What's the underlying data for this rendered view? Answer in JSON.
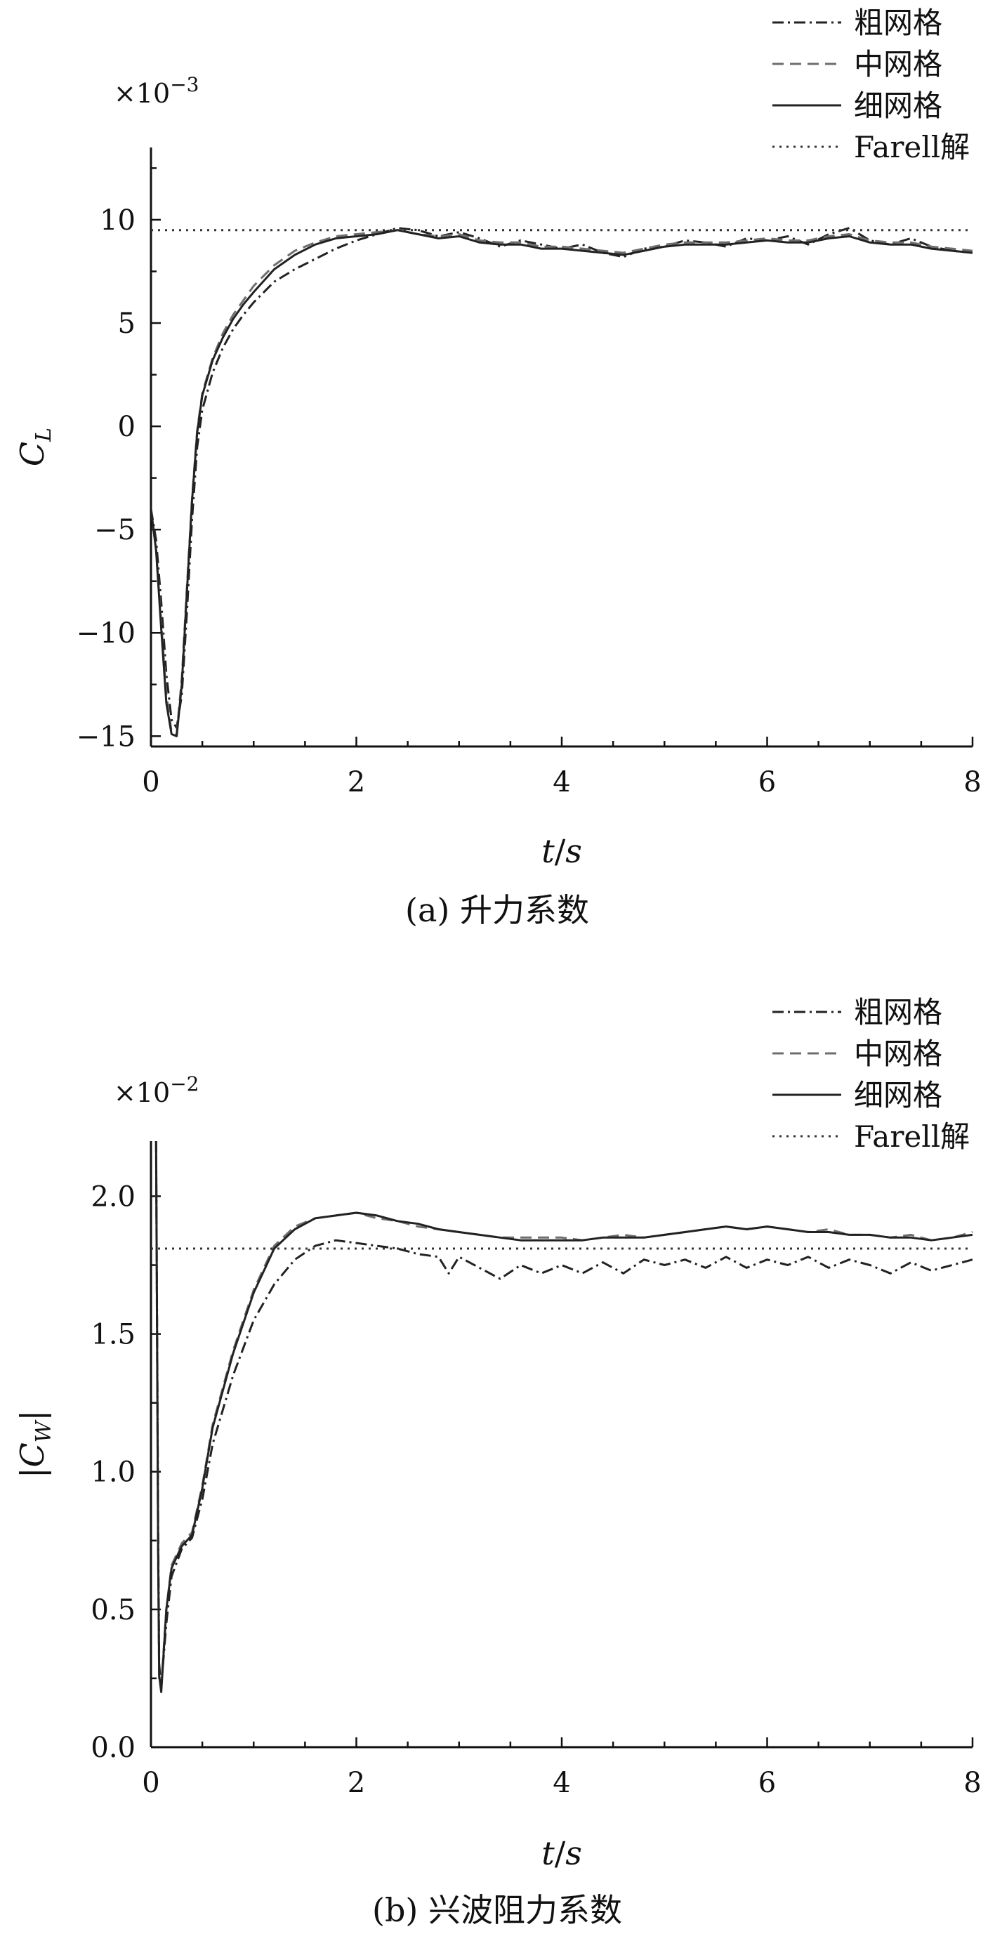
{
  "chart_data": [
    {
      "type": "line",
      "panel_label": "(a) 升力系数",
      "ylabel_main": "C",
      "ylabel_sub": "L",
      "xlabel_italic": "t",
      "xlabel_sep": "/",
      "xlabel_italic2": "s",
      "multiplier_base": "×10",
      "multiplier_exp": "−3",
      "xlim": [
        0,
        8
      ],
      "ylim": [
        -15.5,
        13.5
      ],
      "x_ticks": [
        0,
        2,
        4,
        6,
        8
      ],
      "x_tick_labels": [
        "0",
        "2",
        "4",
        "6",
        "8"
      ],
      "y_ticks": [
        -15,
        -10,
        -5,
        0,
        5,
        10
      ],
      "y_tick_labels": [
        "−15",
        "−10",
        "−5",
        "0",
        "5",
        "10"
      ],
      "grid": false,
      "legend_position": "top-right",
      "series": [
        {
          "name": "粗网格",
          "style": "dashdot",
          "x": [
            0,
            0.05,
            0.1,
            0.15,
            0.2,
            0.25,
            0.3,
            0.35,
            0.4,
            0.45,
            0.5,
            0.6,
            0.7,
            0.8,
            0.9,
            1.0,
            1.2,
            1.4,
            1.6,
            1.8,
            2.0,
            2.2,
            2.4,
            2.6,
            2.8,
            3.0,
            3.2,
            3.4,
            3.6,
            3.8,
            4.0,
            4.2,
            4.4,
            4.6,
            4.8,
            5.0,
            5.2,
            5.4,
            5.6,
            5.8,
            6.0,
            6.2,
            6.4,
            6.6,
            6.8,
            7.0,
            7.2,
            7.4,
            7.6,
            7.8,
            8.0
          ],
          "y": [
            -4.0,
            -5.5,
            -8.5,
            -12.0,
            -14.2,
            -14.6,
            -13.0,
            -9.0,
            -4.5,
            -1.0,
            0.8,
            2.6,
            3.8,
            4.7,
            5.4,
            6.0,
            7.0,
            7.6,
            8.1,
            8.6,
            9.0,
            9.3,
            9.6,
            9.5,
            9.2,
            9.4,
            9.1,
            8.7,
            9.0,
            8.8,
            8.6,
            8.8,
            8.4,
            8.2,
            8.6,
            8.7,
            9.0,
            8.9,
            8.7,
            9.1,
            9.0,
            9.2,
            8.8,
            9.3,
            9.6,
            9.0,
            8.8,
            9.1,
            8.7,
            8.5,
            8.4
          ]
        },
        {
          "name": "中网格",
          "style": "dashed",
          "x": [
            0,
            0.05,
            0.1,
            0.15,
            0.2,
            0.25,
            0.3,
            0.35,
            0.4,
            0.45,
            0.5,
            0.6,
            0.7,
            0.8,
            0.9,
            1.0,
            1.2,
            1.4,
            1.6,
            1.8,
            2.0,
            2.2,
            2.4,
            2.6,
            2.8,
            3.0,
            3.2,
            3.4,
            3.6,
            3.8,
            4.0,
            4.2,
            4.4,
            4.6,
            4.8,
            5.0,
            5.2,
            5.4,
            5.6,
            5.8,
            6.0,
            6.2,
            6.4,
            6.6,
            6.8,
            7.0,
            7.2,
            7.4,
            7.6,
            7.8,
            8.0
          ],
          "y": [
            -4.0,
            -6.0,
            -9.5,
            -13.0,
            -14.8,
            -14.9,
            -12.2,
            -7.8,
            -3.5,
            -0.2,
            1.6,
            3.3,
            4.5,
            5.4,
            6.1,
            6.8,
            7.8,
            8.5,
            8.9,
            9.2,
            9.3,
            9.4,
            9.5,
            9.3,
            9.2,
            9.3,
            9.0,
            8.9,
            8.9,
            8.7,
            8.7,
            8.6,
            8.5,
            8.4,
            8.6,
            8.8,
            8.9,
            8.9,
            8.9,
            9.0,
            9.1,
            9.0,
            9.0,
            9.2,
            9.3,
            9.0,
            8.9,
            8.9,
            8.7,
            8.6,
            8.5
          ]
        },
        {
          "name": "细网格",
          "style": "solid",
          "x": [
            0,
            0.05,
            0.1,
            0.15,
            0.2,
            0.25,
            0.3,
            0.35,
            0.4,
            0.45,
            0.5,
            0.6,
            0.7,
            0.8,
            0.9,
            1.0,
            1.2,
            1.4,
            1.6,
            1.8,
            2.0,
            2.2,
            2.4,
            2.6,
            2.8,
            3.0,
            3.2,
            3.4,
            3.6,
            3.8,
            4.0,
            4.2,
            4.4,
            4.6,
            4.8,
            5.0,
            5.2,
            5.4,
            5.6,
            5.8,
            6.0,
            6.2,
            6.4,
            6.6,
            6.8,
            7.0,
            7.2,
            7.4,
            7.6,
            7.8,
            8.0
          ],
          "y": [
            -4.0,
            -6.0,
            -9.8,
            -13.4,
            -14.9,
            -15.0,
            -12.5,
            -8.0,
            -3.6,
            -0.3,
            1.5,
            3.2,
            4.3,
            5.2,
            5.9,
            6.5,
            7.6,
            8.3,
            8.8,
            9.1,
            9.2,
            9.3,
            9.5,
            9.3,
            9.1,
            9.2,
            8.9,
            8.8,
            8.8,
            8.6,
            8.6,
            8.5,
            8.4,
            8.3,
            8.5,
            8.7,
            8.8,
            8.8,
            8.8,
            8.9,
            9.0,
            8.9,
            8.9,
            9.1,
            9.2,
            8.9,
            8.8,
            8.8,
            8.6,
            8.5,
            8.4
          ]
        },
        {
          "name": "Farell解",
          "style": "dotted",
          "x": [
            0,
            8
          ],
          "y": [
            9.5,
            9.5
          ]
        }
      ]
    },
    {
      "type": "line",
      "panel_label": "(b) 兴波阻力系数",
      "ylabel_main": "|C",
      "ylabel_sub": "W",
      "ylabel_tail": "|",
      "xlabel_italic": "t",
      "xlabel_sep": "/",
      "xlabel_italic2": "s",
      "multiplier_base": "×10",
      "multiplier_exp": "−2",
      "xlim": [
        0,
        8
      ],
      "ylim": [
        0,
        2.2
      ],
      "x_ticks": [
        0,
        2,
        4,
        6,
        8
      ],
      "x_tick_labels": [
        "0",
        "2",
        "4",
        "6",
        "8"
      ],
      "y_ticks": [
        0.0,
        0.5,
        1.0,
        1.5,
        2.0
      ],
      "y_tick_labels": [
        "0.0",
        "0.5",
        "1.0",
        "1.5",
        "2.0"
      ],
      "grid": false,
      "legend_position": "top-right",
      "series": [
        {
          "name": "粗网格",
          "style": "dashdot",
          "x": [
            0.05,
            0.06,
            0.07,
            0.08,
            0.1,
            0.15,
            0.2,
            0.3,
            0.4,
            0.5,
            0.6,
            0.8,
            1.0,
            1.2,
            1.4,
            1.6,
            1.8,
            2.0,
            2.2,
            2.4,
            2.6,
            2.8,
            2.9,
            3.0,
            3.2,
            3.4,
            3.6,
            3.8,
            4.0,
            4.2,
            4.4,
            4.6,
            4.8,
            5.0,
            5.2,
            5.4,
            5.6,
            5.8,
            6.0,
            6.2,
            6.4,
            6.6,
            6.8,
            7.0,
            7.2,
            7.4,
            7.6,
            7.8,
            8.0
          ],
          "y": [
            2.2,
            1.5,
            0.8,
            0.3,
            0.22,
            0.45,
            0.62,
            0.72,
            0.76,
            0.9,
            1.1,
            1.35,
            1.55,
            1.68,
            1.77,
            1.82,
            1.84,
            1.83,
            1.82,
            1.81,
            1.79,
            1.78,
            1.72,
            1.78,
            1.74,
            1.7,
            1.75,
            1.72,
            1.75,
            1.72,
            1.76,
            1.72,
            1.77,
            1.75,
            1.77,
            1.74,
            1.78,
            1.74,
            1.77,
            1.75,
            1.78,
            1.74,
            1.77,
            1.75,
            1.72,
            1.76,
            1.73,
            1.75,
            1.77
          ]
        },
        {
          "name": "中网格",
          "style": "dashed",
          "x": [
            0.05,
            0.06,
            0.07,
            0.08,
            0.1,
            0.15,
            0.2,
            0.3,
            0.4,
            0.5,
            0.6,
            0.8,
            1.0,
            1.2,
            1.4,
            1.6,
            1.8,
            2.0,
            2.2,
            2.4,
            2.6,
            2.8,
            3.0,
            3.2,
            3.4,
            3.6,
            3.8,
            4.0,
            4.2,
            4.4,
            4.6,
            4.8,
            5.0,
            5.2,
            5.4,
            5.6,
            5.8,
            6.0,
            6.2,
            6.4,
            6.6,
            6.8,
            7.0,
            7.2,
            7.4,
            7.6,
            7.8,
            8.0
          ],
          "y": [
            2.2,
            1.4,
            0.7,
            0.25,
            0.22,
            0.5,
            0.66,
            0.74,
            0.78,
            0.95,
            1.17,
            1.44,
            1.66,
            1.82,
            1.89,
            1.92,
            1.93,
            1.94,
            1.92,
            1.91,
            1.89,
            1.88,
            1.87,
            1.86,
            1.85,
            1.85,
            1.85,
            1.85,
            1.84,
            1.85,
            1.86,
            1.85,
            1.86,
            1.87,
            1.88,
            1.89,
            1.88,
            1.89,
            1.88,
            1.87,
            1.88,
            1.86,
            1.86,
            1.85,
            1.86,
            1.84,
            1.85,
            1.87
          ]
        },
        {
          "name": "细网格",
          "style": "solid",
          "x": [
            0.05,
            0.06,
            0.07,
            0.08,
            0.1,
            0.15,
            0.2,
            0.3,
            0.4,
            0.5,
            0.6,
            0.8,
            1.0,
            1.2,
            1.4,
            1.6,
            1.8,
            2.0,
            2.2,
            2.4,
            2.6,
            2.8,
            3.0,
            3.2,
            3.4,
            3.6,
            3.8,
            4.0,
            4.2,
            4.4,
            4.6,
            4.8,
            5.0,
            5.2,
            5.4,
            5.6,
            5.8,
            6.0,
            6.2,
            6.4,
            6.6,
            6.8,
            7.0,
            7.2,
            7.4,
            7.6,
            7.8,
            8.0
          ],
          "y": [
            2.2,
            1.45,
            0.72,
            0.26,
            0.2,
            0.5,
            0.65,
            0.73,
            0.77,
            0.94,
            1.16,
            1.43,
            1.65,
            1.81,
            1.88,
            1.92,
            1.93,
            1.94,
            1.93,
            1.91,
            1.9,
            1.88,
            1.87,
            1.86,
            1.85,
            1.84,
            1.84,
            1.84,
            1.84,
            1.85,
            1.85,
            1.85,
            1.86,
            1.87,
            1.88,
            1.89,
            1.88,
            1.89,
            1.88,
            1.87,
            1.87,
            1.86,
            1.86,
            1.85,
            1.85,
            1.84,
            1.85,
            1.86
          ]
        },
        {
          "name": "Farell解",
          "style": "dotted",
          "x": [
            0,
            8
          ],
          "y": [
            1.81,
            1.81
          ]
        }
      ]
    }
  ]
}
